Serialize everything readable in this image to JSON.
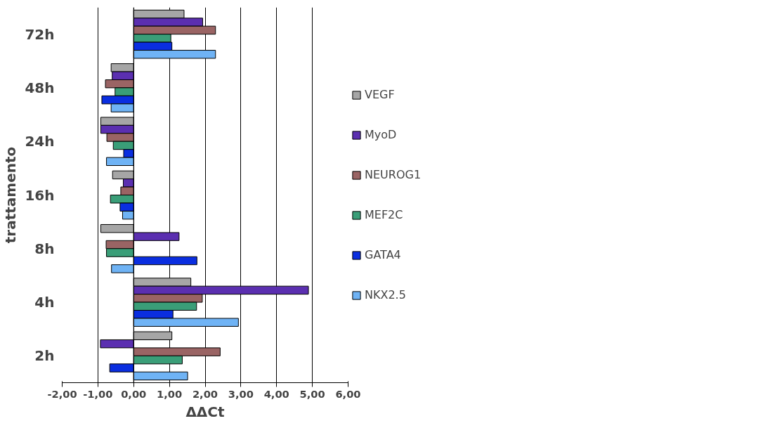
{
  "chart_data": {
    "type": "bar",
    "orientation": "horizontal",
    "xlabel": "ΔΔCt",
    "ylabel": "trattamento",
    "categories": [
      "72h",
      "48h",
      "24h",
      "16h",
      "8h",
      "4h",
      "2h"
    ],
    "series": [
      {
        "name": "VEGF",
        "color": "#a6a6a6",
        "values": [
          1.41,
          -0.63,
          -0.92,
          -0.59,
          -0.92,
          1.6,
          1.07
        ]
      },
      {
        "name": "MyoD",
        "color": "#5b2fb0",
        "values": [
          1.93,
          -0.6,
          -0.92,
          -0.29,
          1.27,
          4.89,
          -0.93
        ]
      },
      {
        "name": "NEUROG1",
        "color": "#9a6464",
        "values": [
          2.29,
          -0.79,
          -0.75,
          -0.36,
          -0.77,
          1.92,
          2.42
        ]
      },
      {
        "name": "MEF2C",
        "color": "#3a9e78",
        "values": [
          1.04,
          -0.52,
          -0.57,
          -0.65,
          -0.76,
          1.76,
          1.36
        ]
      },
      {
        "name": "GATA4",
        "color": "#0a2ee0",
        "values": [
          1.07,
          -0.89,
          -0.28,
          -0.38,
          1.77,
          1.1,
          -0.67
        ]
      },
      {
        "name": "NKX2.5",
        "color": "#6fb3f5",
        "values": [
          2.29,
          -0.63,
          -0.76,
          -0.31,
          -0.62,
          2.93,
          1.51
        ]
      }
    ],
    "xlim": [
      -2,
      6
    ],
    "xticks": [
      {
        "value": -2,
        "label": "-2,00"
      },
      {
        "value": -1,
        "label": "-1,00"
      },
      {
        "value": 0,
        "label": "0,00"
      },
      {
        "value": 1,
        "label": "1,00"
      },
      {
        "value": 2,
        "label": "2,00"
      },
      {
        "value": 3,
        "label": "3,00"
      },
      {
        "value": 4,
        "label": "4,00"
      },
      {
        "value": 5,
        "label": "5,00"
      },
      {
        "value": 6,
        "label": "6,00"
      }
    ],
    "grid": "x",
    "legend": "right"
  }
}
